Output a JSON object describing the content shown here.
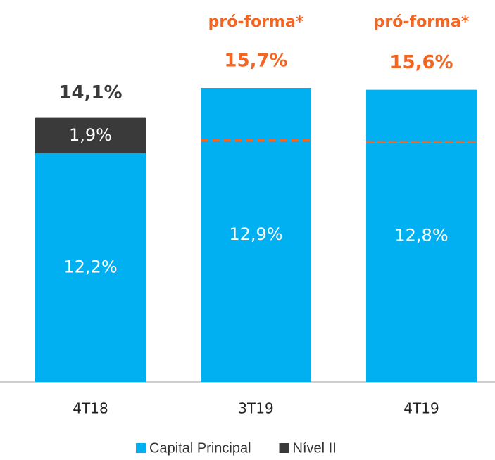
{
  "chart_data": {
    "type": "bar",
    "categories": [
      "4T18",
      "3T19",
      "4T19"
    ],
    "series": [
      {
        "name": "Capital Principal",
        "color": "#00b0f0",
        "values": [
          12.2,
          12.9,
          12.8
        ],
        "value_labels": [
          "12,2%",
          "12,9%",
          "12,8%"
        ]
      },
      {
        "name": "Nível II",
        "color": "#3a3a3a",
        "values": [
          1.9,
          null,
          null
        ],
        "value_labels": [
          "1,9%",
          null,
          null
        ]
      }
    ],
    "totals": [
      14.1,
      15.7,
      15.6
    ],
    "total_labels": [
      "14,1%",
      "15,7%",
      "15,6%"
    ],
    "annotations": [
      null,
      "pró-forma*",
      "pró-forma*"
    ],
    "annotation_color": "#f26522",
    "ylim": [
      0,
      16
    ]
  }
}
